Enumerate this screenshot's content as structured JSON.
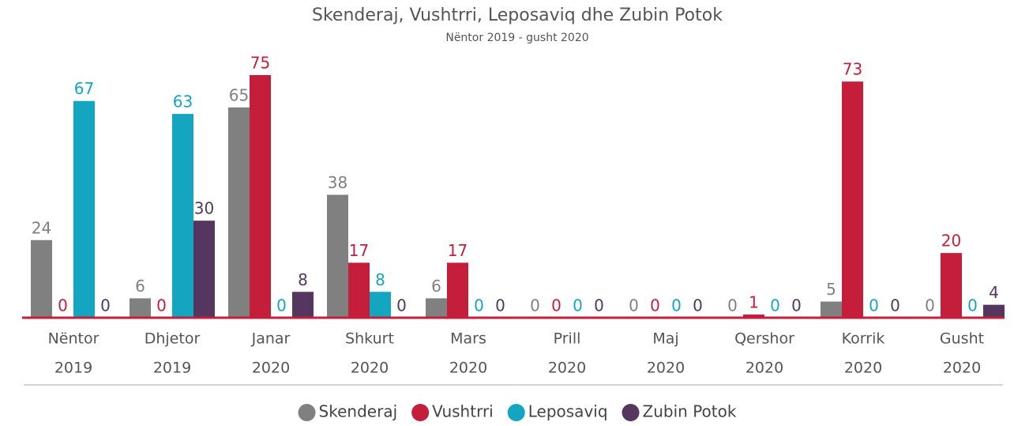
{
  "chart_data": {
    "type": "bar",
    "title": "Skenderaj, Vushtrri, Leposaviq dhe Zubin Potok",
    "subtitle": "Nëntor 2019 - gusht 2020",
    "categories": [
      [
        "Nëntor",
        "2019"
      ],
      [
        "Dhjetor",
        "2019"
      ],
      [
        "Janar",
        "2020"
      ],
      [
        "Shkurt",
        "2020"
      ],
      [
        "Mars",
        "2020"
      ],
      [
        "Prill",
        "2020"
      ],
      [
        "Maj",
        "2020"
      ],
      [
        "Qershor",
        "2020"
      ],
      [
        "Korrik",
        "2020"
      ],
      [
        "Gusht",
        "2020"
      ]
    ],
    "series": [
      {
        "name": "Skenderaj",
        "color": "#808080",
        "values": [
          24,
          6,
          65,
          38,
          6,
          0,
          0,
          0,
          5,
          0
        ]
      },
      {
        "name": "Vushtrri",
        "color": "#c41e3a",
        "values": [
          0,
          0,
          75,
          17,
          17,
          0,
          0,
          1,
          73,
          20
        ]
      },
      {
        "name": "Leposaviq",
        "color": "#14a6c1",
        "values": [
          67,
          63,
          0,
          8,
          0,
          0,
          0,
          0,
          0,
          0
        ]
      },
      {
        "name": "Zubin Potok",
        "color": "#55365e",
        "values": [
          0,
          30,
          8,
          0,
          0,
          0,
          0,
          0,
          0,
          4
        ]
      }
    ],
    "legend": "bottom"
  }
}
